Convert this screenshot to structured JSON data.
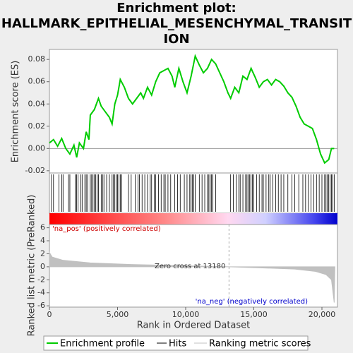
{
  "chart_data": [
    {
      "type": "line",
      "title_lines": [
        "Enrichment plot:",
        "HALLMARK_EPITHELIAL_MESENCHYMAL_TRANSIT",
        "ION"
      ],
      "ylabel": "Enrichment score (ES)",
      "xlim": [
        0,
        21140
      ],
      "ylim": [
        -0.022,
        0.089
      ],
      "yticks": [
        -0.02,
        {
          "value": 0,
          "label": "0.00"
        },
        0.02,
        0.04,
        0.06,
        0.08
      ],
      "zero_line": true,
      "series": [
        {
          "name": "Enrichment profile",
          "color": "#00cc00",
          "x": [
            0,
            300,
            600,
            900,
            1200,
            1500,
            1800,
            2000,
            2200,
            2500,
            2700,
            2900,
            3000,
            3300,
            3600,
            3800,
            4100,
            4400,
            4600,
            4800,
            5000,
            5200,
            5500,
            5800,
            6100,
            6400,
            6700,
            6900,
            7200,
            7500,
            7800,
            8100,
            8400,
            8700,
            9000,
            9200,
            9500,
            9800,
            10100,
            10400,
            10700,
            11000,
            11300,
            11600,
            11900,
            12200,
            12500,
            12800,
            13100,
            13300,
            13600,
            13900,
            14200,
            14500,
            14800,
            15100,
            15400,
            15700,
            16000,
            16300,
            16600,
            16900,
            17200,
            17500,
            17800,
            18100,
            18400,
            18700,
            19000,
            19300,
            19600,
            19900,
            20200,
            20500,
            20700,
            20900
          ],
          "values": [
            0.005,
            0.008,
            0.002,
            0.009,
            0.0,
            -0.005,
            0.003,
            -0.008,
            0.005,
            0.0,
            0.015,
            0.008,
            0.03,
            0.035,
            0.045,
            0.038,
            0.033,
            0.028,
            0.022,
            0.04,
            0.048,
            0.062,
            0.055,
            0.045,
            0.04,
            0.045,
            0.05,
            0.045,
            0.055,
            0.048,
            0.06,
            0.068,
            0.07,
            0.072,
            0.065,
            0.055,
            0.072,
            0.06,
            0.05,
            0.065,
            0.083,
            0.075,
            0.068,
            0.072,
            0.08,
            0.076,
            0.068,
            0.06,
            0.05,
            0.045,
            0.055,
            0.05,
            0.065,
            0.062,
            0.072,
            0.064,
            0.055,
            0.06,
            0.062,
            0.057,
            0.062,
            0.06,
            0.056,
            0.05,
            0.046,
            0.038,
            0.028,
            0.022,
            0.02,
            0.018,
            0.008,
            -0.005,
            -0.013,
            -0.01,
            0.0,
            0.0
          ]
        }
      ],
      "hits": {
        "name": "Hits",
        "color": "#000000",
        "x": [
          150,
          300,
          700,
          900,
          1000,
          1400,
          1500,
          1900,
          2000,
          2100,
          2300,
          2400,
          2600,
          2700,
          2800,
          3000,
          3100,
          3200,
          3300,
          3400,
          3500,
          3600,
          3800,
          3900,
          4000,
          4200,
          4400,
          4600,
          4700,
          4800,
          4900,
          5000,
          5100,
          5200,
          5300,
          5800,
          6000,
          6300,
          6500,
          6600,
          6800,
          7000,
          7200,
          7400,
          7500,
          7700,
          7800,
          8000,
          8200,
          8400,
          8500,
          8700,
          8900,
          9200,
          9400,
          9600,
          9900,
          10100,
          10300,
          10400,
          10500,
          10600,
          10700,
          11000,
          11200,
          11400,
          11600,
          11700,
          11800,
          11900,
          12000,
          12200,
          13300,
          13500,
          13700,
          13900,
          14000,
          14200,
          14400,
          14500,
          14600,
          14700,
          14800,
          14900,
          15000,
          15200,
          15400,
          15600,
          15700,
          15900,
          16100,
          16200,
          16400,
          16600,
          16800,
          17000,
          17200,
          17500,
          17800,
          18000,
          18300,
          18600,
          18800,
          19000,
          19200,
          19400,
          19600,
          19800,
          20000,
          20200,
          20300,
          20400,
          20500,
          20600,
          20700,
          20800,
          20900
        ]
      }
    },
    {
      "type": "area",
      "ylabel": "Ranked list metric (PreRanked)",
      "xlabel": "Rank in Ordered Dataset",
      "xlim": [
        0,
        21140
      ],
      "xticks": [
        0,
        {
          "value": 5000,
          "label": "5,000"
        },
        {
          "value": 10000,
          "label": "10,000"
        },
        {
          "value": 15000,
          "label": "15,000"
        },
        {
          "value": 20000,
          "label": "20,000"
        }
      ],
      "ylim": [
        -6.2,
        6.5
      ],
      "yticks": [
        -6,
        -4,
        -2,
        0,
        2,
        4,
        6
      ],
      "series": [
        {
          "name": "Ranking metric scores",
          "color": "#c0c0c0",
          "x": [
            0,
            200,
            1000,
            3000,
            6000,
            10000,
            13180,
            16000,
            18000,
            19500,
            20300,
            20700,
            20900,
            20950
          ],
          "values": [
            2.2,
            1.5,
            1.0,
            0.6,
            0.35,
            0.15,
            0,
            -0.2,
            -0.35,
            -0.7,
            -1.2,
            -2.0,
            -5.5,
            0
          ]
        }
      ],
      "zero_cross": 13180,
      "zero_cross_label": "Zero cross at 13180",
      "pos_label": "'na_pos' (positively correlated)",
      "neg_label": "'na_neg' (negatively correlated)"
    }
  ]
}
